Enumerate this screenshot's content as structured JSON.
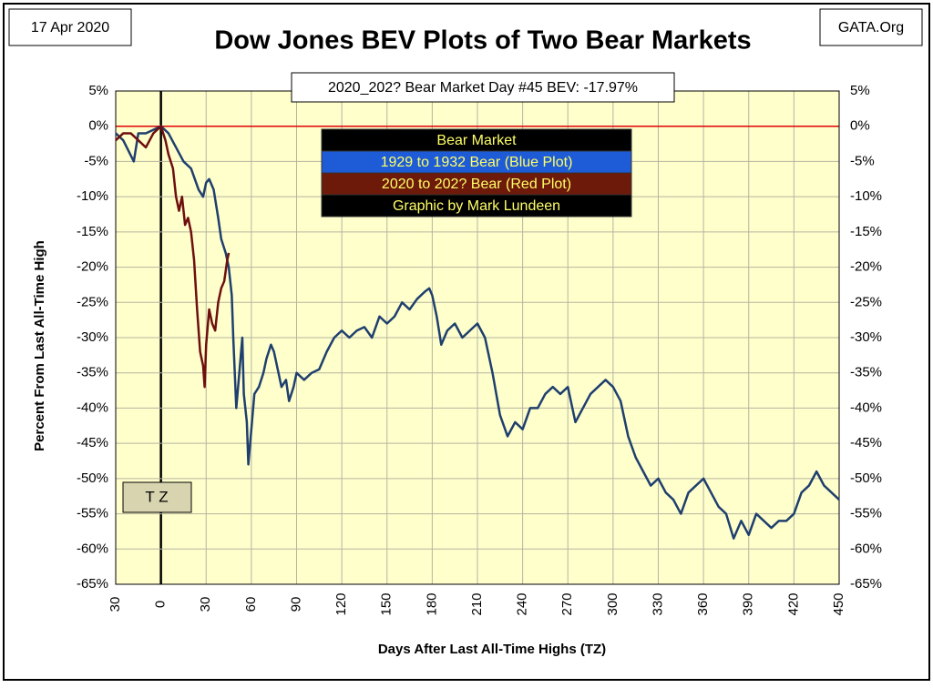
{
  "chart_data": {
    "type": "line",
    "date": "17 Apr 2020",
    "source": "GATA.Org",
    "title": "Dow Jones BEV Plots of Two Bear Markets",
    "annotation": "2020_202? Bear Market Day #45 BEV: -17.97%",
    "legend_title": "Bear Market",
    "credit": "Graphic by Mark Lundeen",
    "tz_label": "T Z",
    "xlabel": "Days After Last All-Time Highs (TZ)",
    "ylabel": "Percent  From  Last  All-Time  High",
    "xlim": [
      -30,
      450
    ],
    "xticks": [
      {
        "value": -30,
        "label": "30"
      },
      0,
      30,
      60,
      90,
      120,
      150,
      180,
      210,
      240,
      270,
      300,
      330,
      360,
      390,
      420,
      450
    ],
    "ylim": [
      -65,
      5
    ],
    "yticks": [
      {
        "value": 5,
        "label": "5%"
      },
      {
        "value": 0,
        "label": "0%"
      },
      {
        "value": -5,
        "label": "-5%"
      },
      {
        "value": -10,
        "label": "-10%"
      },
      {
        "value": -15,
        "label": "-15%"
      },
      {
        "value": -20,
        "label": "-20%"
      },
      {
        "value": -25,
        "label": "-25%"
      },
      {
        "value": -30,
        "label": "-30%"
      },
      {
        "value": -35,
        "label": "-35%"
      },
      {
        "value": -40,
        "label": "-40%"
      },
      {
        "value": -45,
        "label": "-45%"
      },
      {
        "value": -50,
        "label": "-50%"
      },
      {
        "value": -55,
        "label": "-55%"
      },
      {
        "value": -60,
        "label": "-60%"
      },
      {
        "value": -65,
        "label": "-65%"
      }
    ],
    "y2lim": [
      -65,
      5
    ],
    "y2ticks": [
      {
        "value": 5,
        "label": "5%"
      },
      {
        "value": 0,
        "label": "0%"
      },
      {
        "value": -5,
        "label": "-5%"
      },
      {
        "value": -10,
        "label": "-10%"
      },
      {
        "value": -15,
        "label": "-15%"
      },
      {
        "value": -20,
        "label": "-20%"
      },
      {
        "value": -25,
        "label": "-25%"
      },
      {
        "value": -30,
        "label": "-30%"
      },
      {
        "value": -35,
        "label": "-35%"
      },
      {
        "value": -40,
        "label": "-40%"
      },
      {
        "value": -45,
        "label": "-45%"
      },
      {
        "value": -50,
        "label": "-50%"
      },
      {
        "value": -55,
        "label": "-55%"
      },
      {
        "value": -60,
        "label": "-60%"
      },
      {
        "value": -65,
        "label": "-65%"
      }
    ],
    "grid": true,
    "series": [
      {
        "name": "1929 to 1932 Bear (Blue Plot)",
        "color": "#1f3f6e",
        "legend_bg": "#1e5bd6",
        "x": [
          -30,
          -25,
          -18,
          -15,
          -10,
          -5,
          0,
          5,
          10,
          15,
          20,
          25,
          28,
          30,
          32,
          35,
          38,
          40,
          43,
          45,
          47,
          48,
          50,
          52,
          54,
          55,
          57,
          58,
          60,
          62,
          65,
          68,
          70,
          73,
          75,
          78,
          80,
          83,
          85,
          88,
          90,
          95,
          100,
          105,
          110,
          115,
          120,
          125,
          130,
          135,
          140,
          145,
          150,
          155,
          160,
          165,
          170,
          175,
          178,
          180,
          183,
          186,
          190,
          195,
          200,
          205,
          210,
          215,
          220,
          225,
          230,
          235,
          240,
          245,
          250,
          255,
          260,
          265,
          270,
          275,
          280,
          285,
          290,
          295,
          300,
          305,
          310,
          315,
          320,
          325,
          330,
          335,
          340,
          345,
          350,
          355,
          360,
          365,
          370,
          375,
          380,
          385,
          390,
          395,
          400,
          405,
          410,
          415,
          420,
          425,
          430,
          435,
          440,
          445,
          450
        ],
        "values": [
          -1,
          -2,
          -5,
          -1,
          -1,
          -0.5,
          0,
          -1,
          -3,
          -5,
          -6,
          -9,
          -10,
          -8,
          -7.5,
          -9,
          -13,
          -16,
          -18,
          -20,
          -24,
          -30,
          -40,
          -35,
          -30,
          -38,
          -42,
          -48,
          -43,
          -38,
          -37,
          -35,
          -33,
          -31,
          -32,
          -35,
          -37,
          -36,
          -39,
          -37,
          -35,
          -36,
          -35,
          -34.5,
          -32,
          -30,
          -29,
          -30,
          -29,
          -28.5,
          -30,
          -27,
          -28,
          -27,
          -25,
          -26,
          -24.5,
          -23.5,
          -23,
          -24,
          -27,
          -31,
          -29,
          -28,
          -30,
          -29,
          -28,
          -30,
          -35,
          -41,
          -44,
          -42,
          -43,
          -40,
          -40,
          -38,
          -37,
          -38,
          -37,
          -42,
          -40,
          -38,
          -37,
          -36,
          -37,
          -39,
          -44,
          -47,
          -49,
          -51,
          -50,
          -52,
          -53,
          -55,
          -52,
          -51,
          -50,
          -52,
          -54,
          -55,
          -58.5,
          -56,
          -58,
          -55,
          -56,
          -57,
          -56,
          -56,
          -55,
          -52,
          -51,
          -49,
          -51,
          -52,
          -53
        ]
      },
      {
        "name": "2020 to 202? Bear (Red Plot)",
        "color": "#6e0f0f",
        "legend_bg": "#6e1a0a",
        "x": [
          -30,
          -25,
          -20,
          -15,
          -10,
          -5,
          0,
          3,
          5,
          8,
          10,
          12,
          14,
          16,
          18,
          20,
          22,
          24,
          26,
          28,
          29,
          30,
          32,
          34,
          36,
          38,
          40,
          42,
          44,
          45
        ],
        "values": [
          -2,
          -1,
          -1,
          -2,
          -3,
          -1,
          0,
          -2,
          -4,
          -6,
          -10,
          -12,
          -10,
          -14,
          -13,
          -15,
          -19,
          -26,
          -32,
          -34,
          -37,
          -31,
          -26,
          -28,
          -29,
          -25,
          -23,
          -22,
          -19,
          -17.97
        ]
      }
    ]
  }
}
